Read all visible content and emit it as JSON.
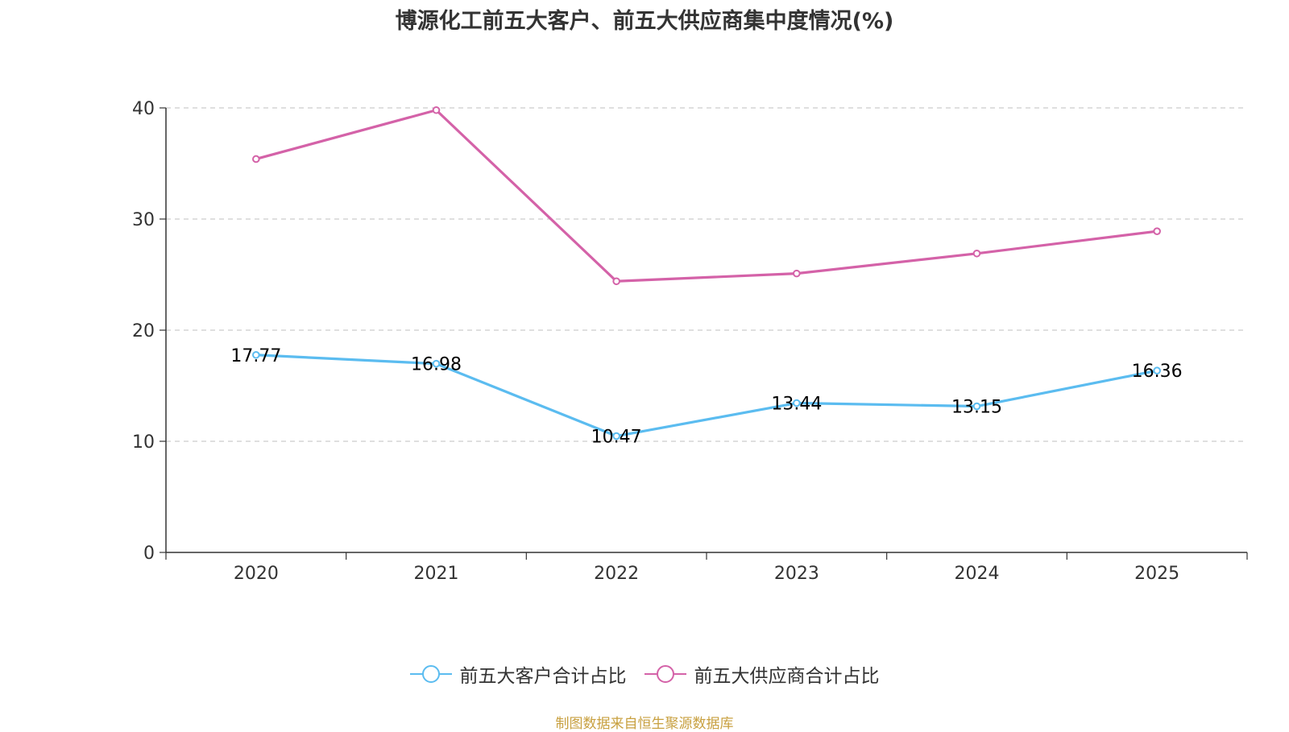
{
  "chart_data": {
    "type": "line",
    "title": "博源化工前五大客户、前五大供应商集中度情况(%)",
    "categories": [
      "2020",
      "2021",
      "2022",
      "2023",
      "2024",
      "2025"
    ],
    "ylim": [
      0,
      40
    ],
    "yticks": [
      0,
      10,
      20,
      30,
      40
    ],
    "grid": true,
    "legend_position": "bottom",
    "series": [
      {
        "name": "前五大客户合计占比",
        "color": "#5bbcf0",
        "values": [
          17.77,
          16.98,
          10.47,
          13.44,
          13.15,
          16.36
        ],
        "labels": [
          "17.77",
          "16.98",
          "10.47",
          "13.44",
          "13.15",
          "16.36"
        ]
      },
      {
        "name": "前五大供应商合计占比",
        "color": "#d462a8",
        "values": [
          35.4,
          39.8,
          24.4,
          25.1,
          26.9,
          28.9
        ],
        "labels": null
      }
    ]
  },
  "source": "制图数据来自恒生聚源数据库"
}
